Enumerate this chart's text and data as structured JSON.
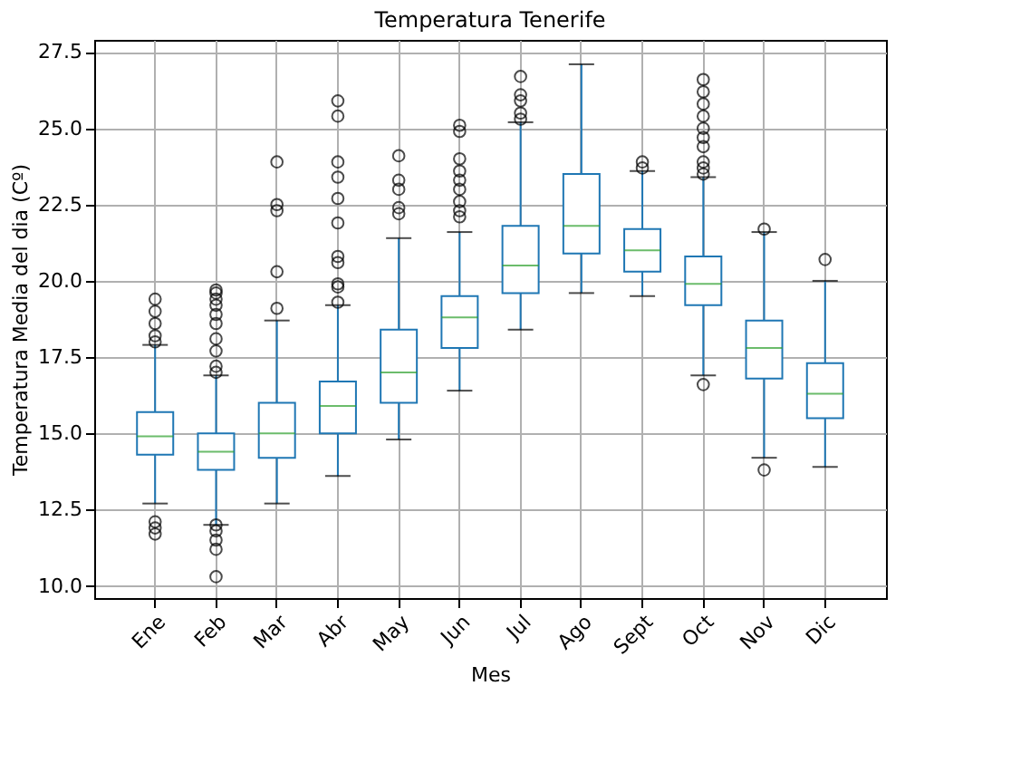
{
  "chart_data": {
    "type": "box",
    "title": "Temperatura  Tenerife",
    "xlabel": "Mes",
    "ylabel": "Temperatura Media del dia (Cº)",
    "categories": [
      "Ene",
      "Feb",
      "Mar",
      "Abr",
      "May",
      "Jun",
      "Jul",
      "Ago",
      "Sept",
      "Oct",
      "Nov",
      "Dic"
    ],
    "ylim": [
      9.6,
      27.9
    ],
    "yticks": [
      {
        "value": 10,
        "label": "10.0"
      },
      12.5,
      {
        "value": 15,
        "label": "15.0"
      },
      17.5,
      {
        "value": 20,
        "label": "20.0"
      },
      22.5,
      {
        "value": 25,
        "label": "25.0"
      },
      27.5
    ],
    "grid": true,
    "series": [
      {
        "color": "#1f77b4",
        "boxes": [
          {
            "low": 12.7,
            "q1": 14.3,
            "median": 14.9,
            "q3": 15.7,
            "high": 17.9,
            "outliers": [
              11.7,
              11.9,
              12.1,
              18.0,
              18.2,
              18.6,
              19.0,
              19.4
            ]
          },
          {
            "low": 12.0,
            "q1": 13.8,
            "median": 14.4,
            "q3": 15.0,
            "high": 16.9,
            "outliers": [
              10.3,
              11.2,
              11.5,
              11.8,
              12.0,
              17.0,
              17.2,
              17.7,
              18.1,
              18.6,
              18.9,
              19.2,
              19.4,
              19.6,
              19.7
            ]
          },
          {
            "low": 12.7,
            "q1": 14.2,
            "median": 15.0,
            "q3": 16.0,
            "high": 18.7,
            "outliers": [
              19.1,
              20.3,
              22.3,
              22.5,
              23.9
            ]
          },
          {
            "low": 13.6,
            "q1": 15.0,
            "median": 15.9,
            "q3": 16.7,
            "high": 19.2,
            "outliers": [
              19.3,
              19.8,
              19.9,
              20.6,
              20.8,
              21.9,
              22.7,
              23.4,
              23.9,
              25.4,
              25.9
            ]
          },
          {
            "low": 14.8,
            "q1": 16.0,
            "median": 17.0,
            "q3": 18.4,
            "high": 21.4,
            "outliers": [
              22.2,
              22.4,
              23.0,
              23.3,
              24.1
            ]
          },
          {
            "low": 16.4,
            "q1": 17.8,
            "median": 18.8,
            "q3": 19.5,
            "high": 21.6,
            "outliers": [
              22.1,
              22.3,
              22.6,
              23.0,
              23.3,
              23.6,
              24.0,
              24.9,
              25.1
            ]
          },
          {
            "low": 18.4,
            "q1": 19.6,
            "median": 20.5,
            "q3": 21.8,
            "high": 25.2,
            "outliers": [
              25.3,
              25.5,
              25.9,
              26.1,
              26.7
            ]
          },
          {
            "low": 19.6,
            "q1": 20.9,
            "median": 21.8,
            "q3": 23.5,
            "high": 27.1
          },
          {
            "low": 19.5,
            "q1": 20.3,
            "median": 21.0,
            "q3": 21.7,
            "high": 23.6,
            "outliers": [
              23.7,
              23.9
            ]
          },
          {
            "low": 16.9,
            "q1": 19.2,
            "median": 19.9,
            "q3": 20.8,
            "high": 23.4,
            "outliers": [
              16.6,
              23.5,
              23.7,
              23.9,
              24.4,
              24.7,
              25.0,
              25.4,
              25.8,
              26.2,
              26.6
            ]
          },
          {
            "low": 14.2,
            "q1": 16.8,
            "median": 17.8,
            "q3": 18.7,
            "high": 21.6,
            "outliers": [
              13.8,
              21.7
            ]
          },
          {
            "low": 13.9,
            "q1": 15.5,
            "median": 16.3,
            "q3": 17.3,
            "high": 20.0,
            "outliers": [
              20.7
            ]
          }
        ]
      }
    ]
  }
}
